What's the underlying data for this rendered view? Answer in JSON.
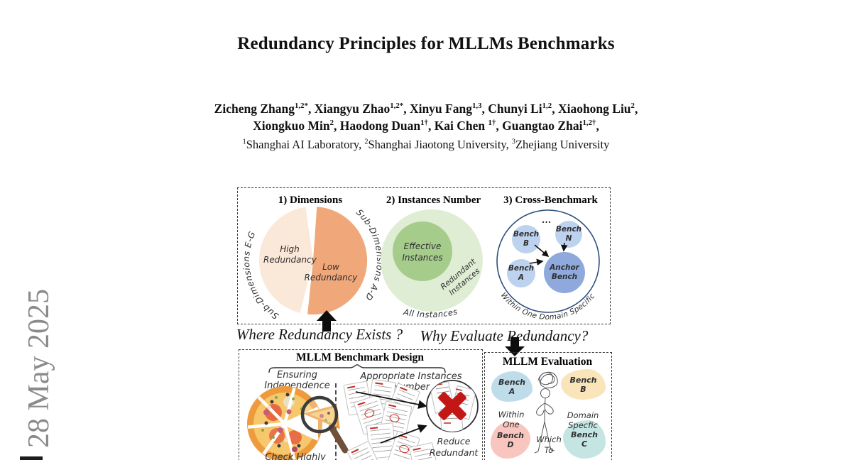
{
  "watermark": {
    "date": "28 May 2025"
  },
  "paper": {
    "title": "Redundancy Principles for MLLMs Benchmarks",
    "authors_line1": [
      {
        "name": "Zicheng Zhang",
        "sup": "1,2*",
        "tail": ", "
      },
      {
        "name": "Xiangyu Zhao",
        "sup": "1,2*",
        "tail": ", "
      },
      {
        "name": "Xinyu Fang",
        "sup": "1,3",
        "tail": ", "
      },
      {
        "name": "Chunyi Li",
        "sup": "1,2",
        "tail": ", "
      },
      {
        "name": "Xiaohong Liu",
        "sup": "2",
        "tail": ","
      }
    ],
    "authors_line2": [
      {
        "name": "Xiongkuo Min",
        "sup": "2",
        "tail": ", "
      },
      {
        "name": "Haodong Duan",
        "sup": "1†",
        "tail": ", "
      },
      {
        "name": "Kai Chen ",
        "sup": "1†",
        "tail": ", "
      },
      {
        "name": "Guangtao Zhai",
        "sup": "1,2†",
        "tail": ","
      }
    ],
    "affiliations": [
      {
        "sup": "1",
        "name": "Shanghai AI Laboratory, "
      },
      {
        "sup": "2",
        "name": "Shanghai Jiaotong University, "
      },
      {
        "sup": "3",
        "name": "Zhejiang University"
      }
    ]
  },
  "figure": {
    "dimensions": {
      "title": "1) Dimensions",
      "high_label": "High\nRedundancy",
      "low_label": "Low\nRedundancy",
      "arc_left": "Sub-Dimensions E-G",
      "arc_right": "Sub-Dimensions A-D",
      "color_high": "#FAE8D8",
      "color_low": "#F0A87A"
    },
    "instances": {
      "title": "2) Instances Number",
      "effective": "Effective\nInstances",
      "redundant": "Redundant\nInstances",
      "all": "All Instances",
      "color_outer": "#DFEDD4",
      "color_inner": "#A6CC8C"
    },
    "cross_benchmark": {
      "title": "3) Cross-Benchmark",
      "bench_b": "Bench\nB",
      "bench_n": "Bench\nN",
      "bench_a": "Bench\nA",
      "anchor": "Anchor\nBench",
      "dots": "...",
      "caption": "Within One Domain Specific",
      "color_node": "#BDD2EF",
      "color_anchor": "#8FA9DD",
      "color_ring": "#2E4E7E"
    },
    "questions": {
      "where": "Where Redundancy Exists ?",
      "why": "Why Evaluate Redundancy?"
    },
    "design": {
      "title": "MLLM Benchmark Design",
      "ensuring": "Ensuring Independence",
      "appropriate": "Appropriate Instances Number",
      "check": "Check Highly Redundant",
      "reduce": "Reduce\nRedundant",
      "x_color": "#C21715"
    },
    "evaluation": {
      "title": "MLLM Evaluation",
      "clouds": [
        {
          "label": "Bench\nA",
          "color": "#BFDCEA"
        },
        {
          "label": "Bench\nB",
          "color": "#FAE4BA"
        },
        {
          "label": "Bench\nD",
          "color": "#F8C6BE"
        },
        {
          "label": "Bench\nC",
          "color": "#C4E5E2"
        }
      ],
      "within": "Within One",
      "domain": "Domain Specfic",
      "which": "Which\nTo"
    }
  }
}
